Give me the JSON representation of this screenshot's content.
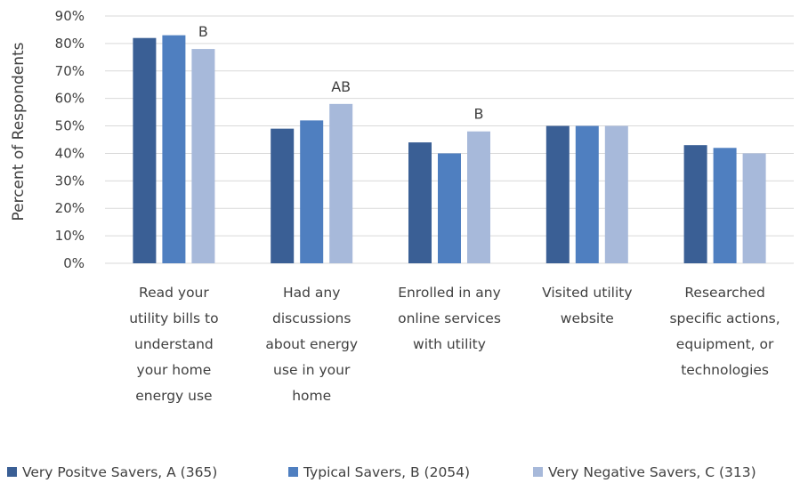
{
  "chart_data": {
    "type": "bar",
    "title": "",
    "xlabel": "",
    "ylabel": "Percent of Respondents",
    "ylim": [
      0,
      90
    ],
    "yticks": [
      "0%",
      "10%",
      "20%",
      "30%",
      "40%",
      "50%",
      "60%",
      "70%",
      "80%",
      "90%"
    ],
    "grid": true,
    "legend_position": "bottom",
    "categories": [
      [
        "Read your",
        "utility bills to",
        "understand",
        "your home",
        "energy use"
      ],
      [
        "Had any",
        "discussions",
        "about energy",
        "use in your",
        "home"
      ],
      [
        "Enrolled in any",
        "online services",
        "with utility"
      ],
      [
        "Visited utility",
        "website"
      ],
      [
        "Researched",
        "specific actions,",
        "equipment, or",
        "technologies"
      ]
    ],
    "series": [
      {
        "name": "Very Positve Savers, A (365)",
        "color": "#3a5f95",
        "values": [
          82,
          49,
          44,
          50,
          43
        ]
      },
      {
        "name": "Typical Savers, B (2054)",
        "color": "#4f7fc0",
        "values": [
          83,
          52,
          40,
          50,
          42
        ]
      },
      {
        "name": "Very Negative Savers, C (313)",
        "color": "#a7b9da",
        "values": [
          78,
          58,
          48,
          50,
          40
        ]
      }
    ],
    "annotations": [
      {
        "category_index": 0,
        "series_index": 2,
        "text": "B"
      },
      {
        "category_index": 1,
        "series_index": 2,
        "text": "AB"
      },
      {
        "category_index": 2,
        "series_index": 2,
        "text": "B"
      }
    ],
    "gridline_color": "#d9d9d9",
    "text_color": "#404040"
  }
}
